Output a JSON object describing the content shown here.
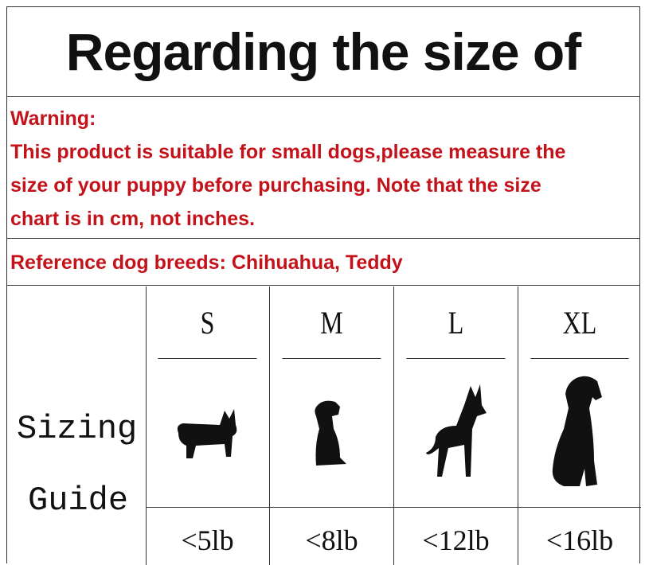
{
  "title": "Regarding the size of",
  "warning": {
    "heading": "Warning:",
    "lines": [
      "This product is suitable for small dogs,please measure the",
      "size of your puppy before purchasing. Note that the size",
      "chart is in cm, not inches."
    ]
  },
  "reference": "Reference dog breeds: Chihuahua, Teddy",
  "colors": {
    "warning_text": "#c4121a",
    "silhouette": "#111111"
  },
  "sizing": {
    "label_line1": "Sizing",
    "label_line2": "Guide",
    "sizes": [
      {
        "size": "S",
        "weight": "<5lb",
        "icon": "corgi-silhouette-icon"
      },
      {
        "size": "M",
        "weight": "<8lb",
        "icon": "puppy-sitting-silhouette-icon"
      },
      {
        "size": "L",
        "weight": "<12lb",
        "icon": "shepherd-silhouette-icon"
      },
      {
        "size": "XL",
        "weight": "<16lb",
        "icon": "large-dog-sitting-silhouette-icon"
      }
    ]
  }
}
